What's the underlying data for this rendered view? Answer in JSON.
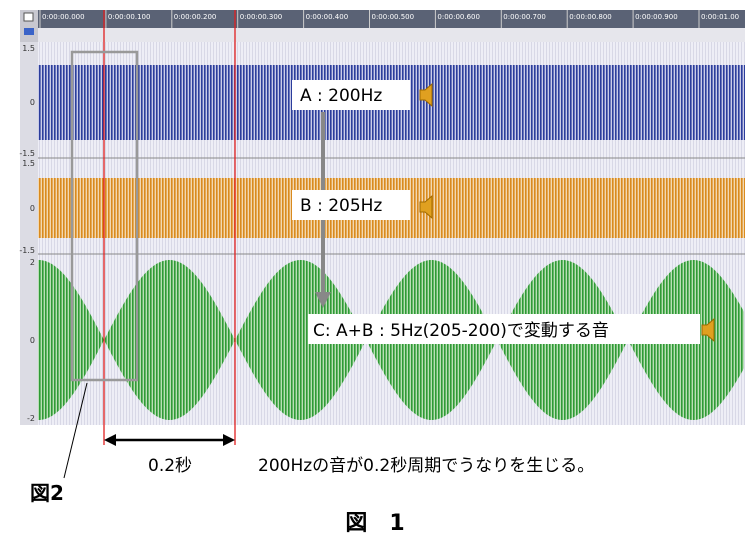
{
  "ruler": {
    "labels": [
      "0:00:00.000",
      "0:00:00.100",
      "0:00:00.200",
      "0:00:00.300",
      "0:00:00.400",
      "0:00:00.500",
      "0:00:00.600",
      "0:00:00.700",
      "0:00:00.800",
      "0:00:00.900",
      "0:00:01.00"
    ]
  },
  "tracks": [
    {
      "scale": [
        "1.5",
        "0",
        "-1.5"
      ]
    },
    {
      "scale": [
        "1.5",
        "0",
        "-1.5"
      ]
    },
    {
      "scale": [
        "2",
        "0",
        "-2"
      ]
    }
  ],
  "annotations": {
    "a": "A : 200Hz",
    "b": "B : 205Hz",
    "c": "C: A+B : 5Hz(205-200)で変動する音",
    "interval": "0.2秒",
    "note": "200Hzの音が0.2秒周期でうなりを生じる。",
    "fig2": "図2"
  },
  "caption": "図　1"
}
